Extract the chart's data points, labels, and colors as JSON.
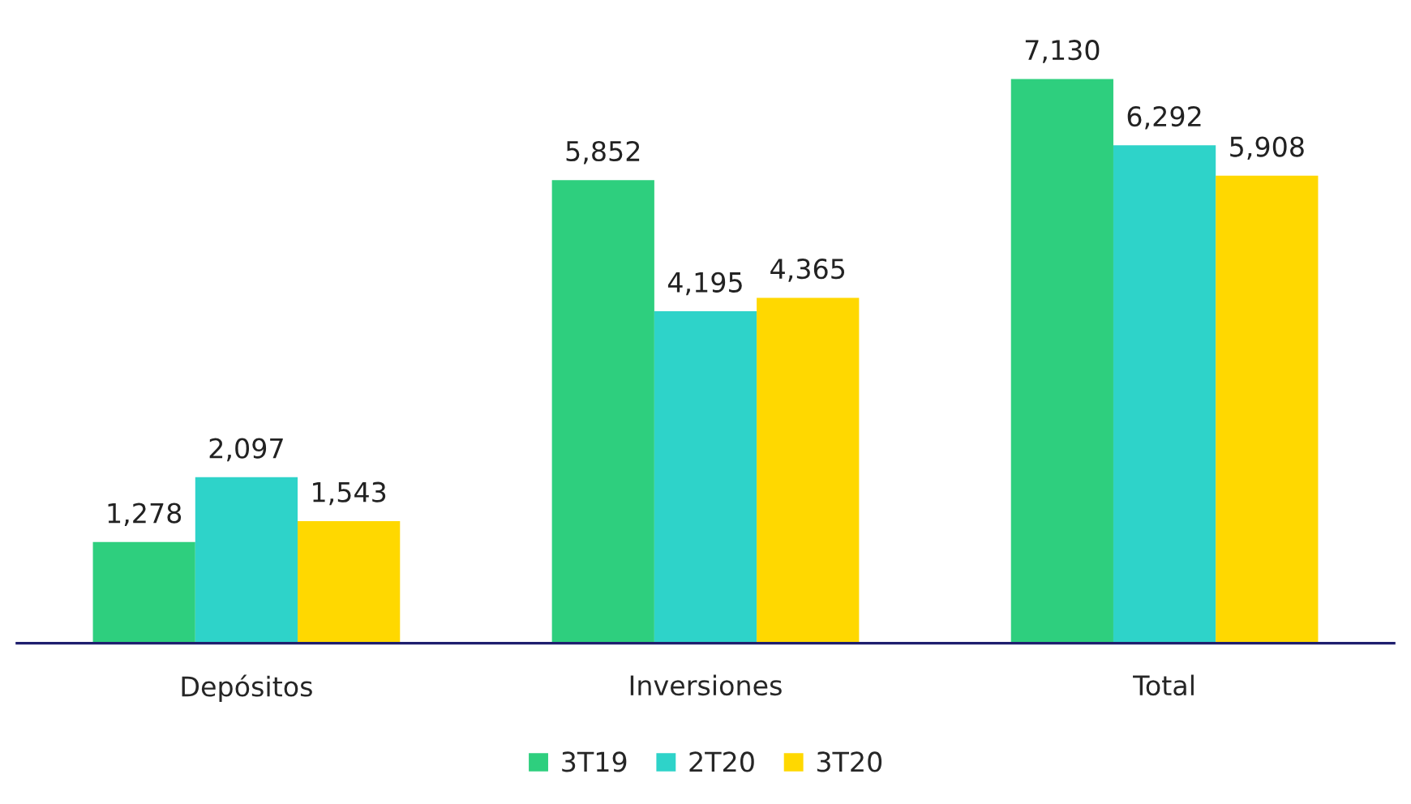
{
  "chart_data": {
    "type": "bar",
    "categories": [
      "Depósitos",
      "Inversiones",
      "Total"
    ],
    "series": [
      {
        "name": "3T19",
        "color": "#2ecf7e",
        "values": [
          1278,
          5852,
          7130
        ],
        "value_labels": [
          "1,278",
          "5,852",
          "7,130"
        ]
      },
      {
        "name": "2T20",
        "color": "#2ed3c9",
        "values": [
          2097,
          4195,
          6292
        ],
        "value_labels": [
          "2,097",
          "4,195",
          "6,292"
        ]
      },
      {
        "name": "3T20",
        "color": "#ffd800",
        "values": [
          1543,
          4365,
          5908
        ],
        "value_labels": [
          "1,543",
          "4,365",
          "5,908"
        ]
      }
    ],
    "legend": "bottom",
    "grid": false
  }
}
